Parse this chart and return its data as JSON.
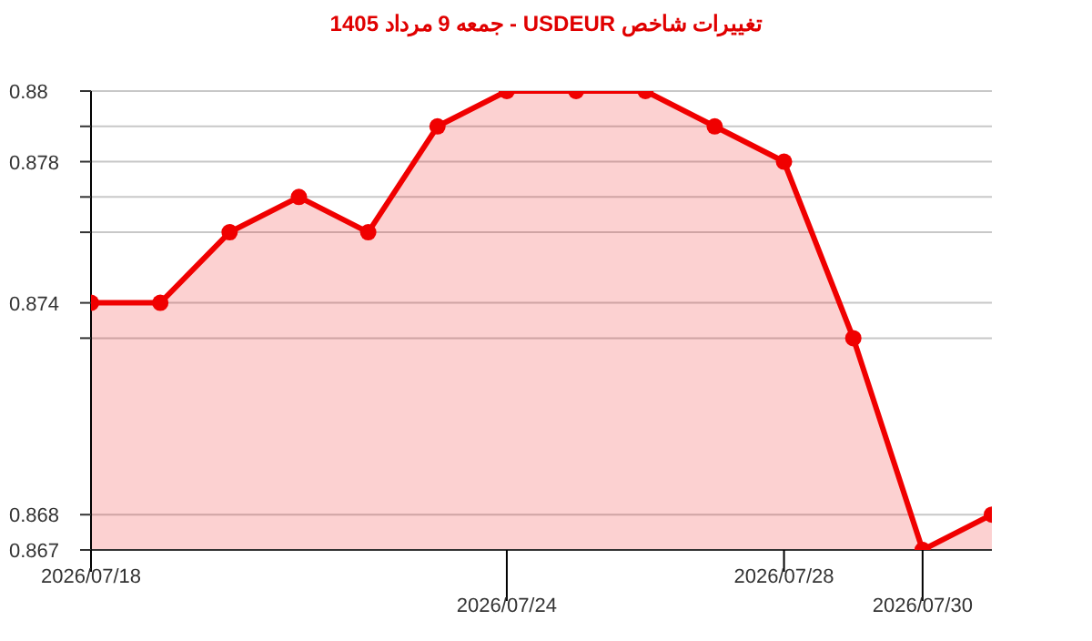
{
  "chart_data": {
    "type": "area",
    "title": "تغییرات شاخص USDEUR - جمعه  9 مرداد 1405",
    "categories": [
      "2026/07/18",
      null,
      null,
      null,
      null,
      null,
      "2026/07/24",
      null,
      null,
      null,
      "2026/07/28",
      null,
      "2026/07/30",
      null
    ],
    "series": [
      {
        "color": "#f00000",
        "values": [
          0.874,
          0.874,
          0.876,
          0.877,
          0.876,
          0.879,
          0.88,
          0.88,
          0.88,
          0.879,
          0.878,
          0.873,
          0.867,
          0.868
        ]
      }
    ],
    "ylim": [
      0.867,
      0.88
    ],
    "yticks": [
      0.867,
      0.868,
      {
        "value": 0.873,
        "label": null
      },
      0.874,
      {
        "value": 0.876,
        "label": null
      },
      {
        "value": 0.877,
        "label": null
      },
      0.878,
      {
        "value": 0.879,
        "label": null
      },
      0.88
    ],
    "grid": "y",
    "marker": "circle",
    "legend": false
  }
}
